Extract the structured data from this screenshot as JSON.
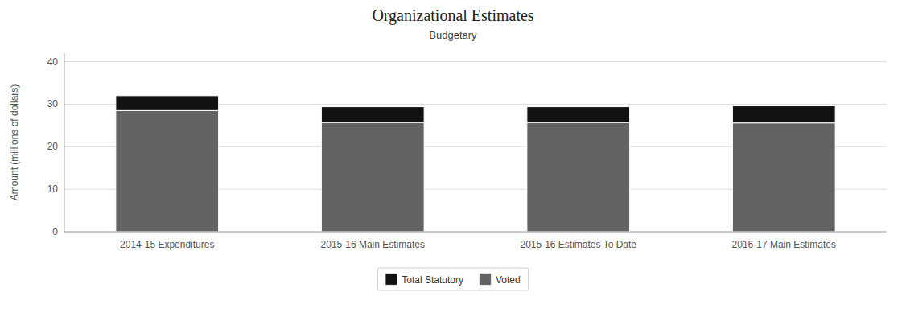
{
  "chart_data": {
    "type": "bar",
    "stacked": true,
    "title": "Organizational Estimates",
    "subtitle": "Budgetary",
    "ylabel": "Amount (millions of dollars)",
    "categories": [
      "2014-15 Expenditures",
      "2015-16 Main Estimates",
      "2015-16 Estimates To Date",
      "2016-17 Main Estimates"
    ],
    "series": [
      {
        "name": "Voted",
        "color": "#636363",
        "values": [
          28.5,
          25.7,
          25.7,
          25.6
        ]
      },
      {
        "name": "Total Statutory",
        "color": "#111111",
        "values": [
          3.5,
          3.7,
          3.7,
          4.0
        ]
      }
    ],
    "ylim": [
      0,
      42
    ],
    "yticks": [
      0,
      10,
      20,
      30,
      40
    ],
    "grid": true,
    "legend": "bottom"
  }
}
